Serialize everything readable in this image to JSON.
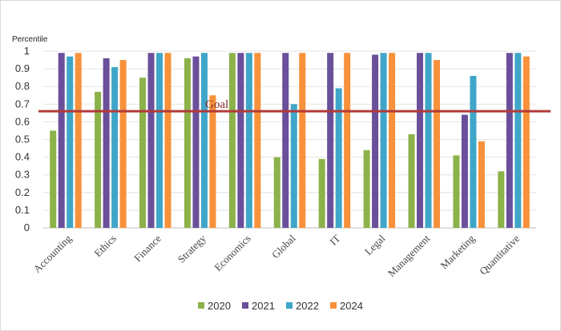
{
  "chart_data": {
    "type": "bar",
    "ylabel": "Percentile",
    "ylim": [
      0,
      1
    ],
    "yticks": [
      "0",
      "0.1",
      "0.2",
      "0.3",
      "0.4",
      "0.5",
      "0.6",
      "0.7",
      "0.8",
      "0.9",
      "1"
    ],
    "categories": [
      "Accounting",
      "Ethics",
      "Finance",
      "Strategy",
      "Economics",
      "Global",
      "IT",
      "Legal",
      "Management",
      "Marketing",
      "Quantitative"
    ],
    "series": [
      {
        "name": "2020",
        "color": "#8cb24a",
        "values": [
          0.55,
          0.77,
          0.85,
          0.96,
          0.99,
          0.4,
          0.39,
          0.44,
          0.53,
          0.41,
          0.32
        ]
      },
      {
        "name": "2021",
        "color": "#6a4f9a",
        "values": [
          0.99,
          0.96,
          0.99,
          0.97,
          0.99,
          0.99,
          0.99,
          0.98,
          0.99,
          0.64,
          0.99
        ]
      },
      {
        "name": "2022",
        "color": "#3fa6c9",
        "values": [
          0.97,
          0.91,
          0.99,
          0.99,
          0.99,
          0.7,
          0.79,
          0.99,
          0.99,
          0.86,
          0.99
        ]
      },
      {
        "name": "2024",
        "color": "#f7913a",
        "values": [
          0.99,
          0.95,
          0.99,
          0.75,
          0.99,
          0.99,
          0.99,
          0.99,
          0.95,
          0.49,
          0.97
        ]
      }
    ],
    "goal": {
      "label": "Goal",
      "value": 0.66,
      "color": "#b23a3a"
    },
    "grid": true,
    "legend": "bottom"
  }
}
